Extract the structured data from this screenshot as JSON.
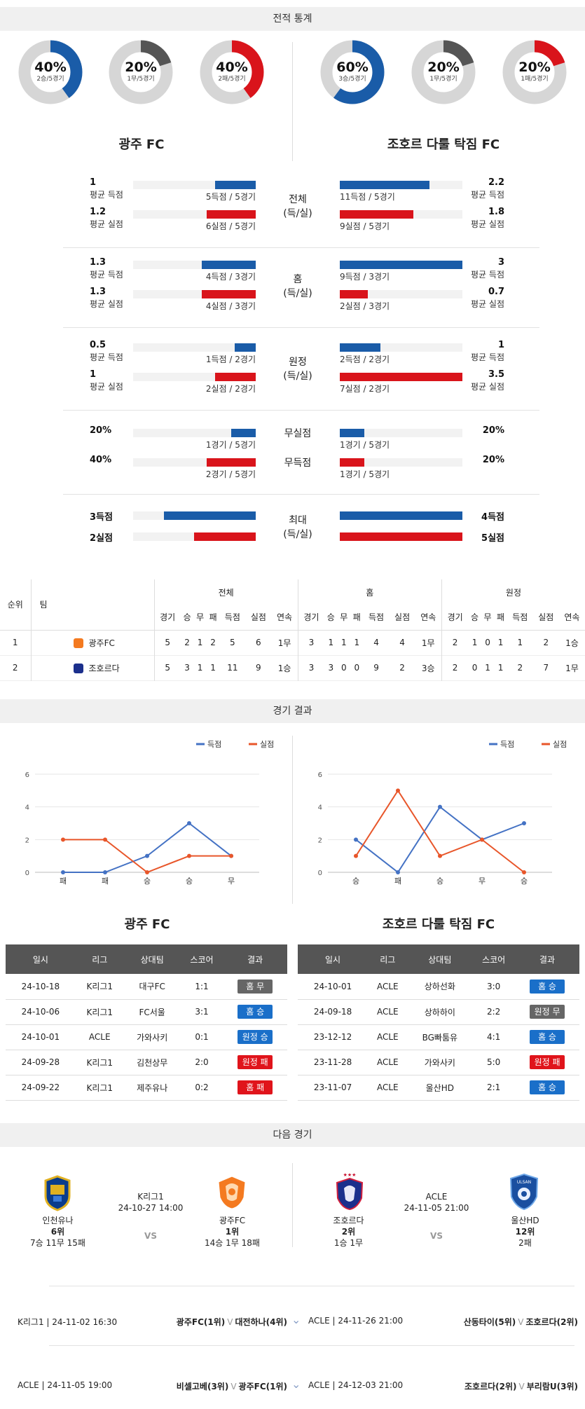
{
  "stats_title": "전적 통계",
  "donuts": [
    {
      "pct": "40%",
      "sub": "2승/5경기",
      "value": 0.4,
      "color": "#1a5ca8",
      "cx": 72
    },
    {
      "pct": "20%",
      "sub": "1무/5경기",
      "value": 0.2,
      "color": "#555555",
      "cx": 201
    },
    {
      "pct": "40%",
      "sub": "2패/5경기",
      "value": 0.4,
      "color": "#d9141b",
      "cx": 331
    },
    {
      "pct": "60%",
      "sub": "3승/5경기",
      "value": 0.6,
      "color": "#1a5ca8",
      "cx": 503
    },
    {
      "pct": "20%",
      "sub": "1무/5경기",
      "value": 0.2,
      "color": "#555555",
      "cx": 633
    },
    {
      "pct": "20%",
      "sub": "1패/5경기",
      "value": 0.2,
      "color": "#d9141b",
      "cx": 763
    }
  ],
  "team_home": "광주 FC",
  "team_away": "조호르 다룰 탁짐 FC",
  "stat_blocks": [
    {
      "cat1": "전체",
      "cat2": "(득/실)",
      "rows": [
        {
          "hv": "1",
          "hl": "평균 득점",
          "hn": "5득점 / 5경기",
          "hf": 0.33,
          "hc": "blue",
          "av": "2.2",
          "al": "평균 득점",
          "an": "11득점 / 5경기",
          "af": 0.73,
          "ac": "blue"
        },
        {
          "hv": "1.2",
          "hl": "평균 실점",
          "hn": "6실점 / 5경기",
          "hf": 0.4,
          "hc": "red",
          "av": "1.8",
          "al": "평균 실점",
          "an": "9실점 / 5경기",
          "af": 0.6,
          "ac": "red"
        }
      ]
    },
    {
      "cat1": "홈",
      "cat2": "(득/실)",
      "rows": [
        {
          "hv": "1.3",
          "hl": "평균 득점",
          "hn": "4득점 / 3경기",
          "hf": 0.44,
          "hc": "blue",
          "av": "3",
          "al": "평균 득점",
          "an": "9득점 / 3경기",
          "af": 1.0,
          "ac": "blue"
        },
        {
          "hv": "1.3",
          "hl": "평균 실점",
          "hn": "4실점 / 3경기",
          "hf": 0.44,
          "hc": "red",
          "av": "0.7",
          "al": "평균 실점",
          "an": "2실점 / 3경기",
          "af": 0.23,
          "ac": "red"
        }
      ]
    },
    {
      "cat1": "원정",
      "cat2": "(득/실)",
      "rows": [
        {
          "hv": "0.5",
          "hl": "평균 득점",
          "hn": "1득점 / 2경기",
          "hf": 0.17,
          "hc": "blue",
          "av": "1",
          "al": "평균 득점",
          "an": "2득점 / 2경기",
          "af": 0.33,
          "ac": "blue"
        },
        {
          "hv": "1",
          "hl": "평균 실점",
          "hn": "2실점 / 2경기",
          "hf": 0.33,
          "hc": "red",
          "av": "3.5",
          "al": "평균 실점",
          "an": "7실점 / 2경기",
          "af": 1.0,
          "ac": "red"
        }
      ]
    }
  ],
  "clean_block": [
    {
      "cat": "무실점",
      "hv": "20%",
      "hn": "1경기 / 5경기",
      "hf": 0.2,
      "hc": "blue",
      "av": "20%",
      "an": "1경기 / 5경기",
      "af": 0.2,
      "ac": "blue"
    },
    {
      "cat": "무득점",
      "hv": "40%",
      "hn": "2경기 / 5경기",
      "hf": 0.4,
      "hc": "red",
      "av": "20%",
      "an": "1경기 / 5경기",
      "af": 0.2,
      "ac": "red"
    }
  ],
  "max_block": {
    "cat1": "최대",
    "cat2": "(득/실)",
    "rows": [
      {
        "hv": "3득점",
        "hf": 0.75,
        "hc": "blue",
        "av": "4득점",
        "af": 1.0,
        "ac": "blue"
      },
      {
        "hv": "2실점",
        "hf": 0.5,
        "hc": "red",
        "av": "5실점",
        "af": 1.0,
        "ac": "red"
      }
    ]
  },
  "standings": {
    "groups": [
      "전체",
      "홈",
      "원정"
    ],
    "cols_rank": "순위",
    "cols_team": "팀",
    "sub_cols": [
      "경기",
      "승",
      "무",
      "패",
      "득점",
      "실점",
      "연속"
    ],
    "rows": [
      {
        "rank": "1",
        "team": "광주FC",
        "logo": "gwangju-logo-icon",
        "all": [
          "5",
          "2",
          "1",
          "2",
          "5",
          "6",
          "1무"
        ],
        "home": [
          "3",
          "1",
          "1",
          "1",
          "4",
          "4",
          "1무"
        ],
        "away": [
          "2",
          "1",
          "0",
          "1",
          "1",
          "2",
          "1승"
        ]
      },
      {
        "rank": "2",
        "team": "조호르다",
        "logo": "johor-logo-icon",
        "all": [
          "5",
          "3",
          "1",
          "1",
          "11",
          "9",
          "1승"
        ],
        "home": [
          "3",
          "3",
          "0",
          "0",
          "9",
          "2",
          "3승"
        ],
        "away": [
          "2",
          "0",
          "1",
          "1",
          "2",
          "7",
          "1무"
        ]
      }
    ]
  },
  "results_title": "경기 결과",
  "chart_data": [
    {
      "type": "line",
      "categories": [
        "패",
        "패",
        "승",
        "승",
        "무"
      ],
      "ylim": [
        0,
        6
      ],
      "yticks": [
        0,
        2,
        4,
        6
      ],
      "series": [
        {
          "name": "득점",
          "color": "#4472c4",
          "values": [
            0,
            0,
            1,
            3,
            1
          ]
        },
        {
          "name": "실점",
          "color": "#e8562a",
          "values": [
            2,
            2,
            0,
            1,
            1
          ]
        }
      ]
    },
    {
      "type": "line",
      "categories": [
        "승",
        "패",
        "승",
        "무",
        "승"
      ],
      "ylim": [
        0,
        6
      ],
      "yticks": [
        0,
        2,
        4,
        6
      ],
      "series": [
        {
          "name": "득점",
          "color": "#4472c4",
          "values": [
            2,
            0,
            4,
            2,
            3
          ]
        },
        {
          "name": "실점",
          "color": "#e8562a",
          "values": [
            1,
            5,
            1,
            2,
            0
          ]
        }
      ]
    }
  ],
  "result_headers": [
    "일시",
    "리그",
    "상대팀",
    "스코어",
    "결과"
  ],
  "results_home": [
    {
      "date": "24-10-18",
      "league": "K리그1",
      "opp": "대구FC",
      "score": "1:1",
      "res": "홈 무",
      "type": "draw"
    },
    {
      "date": "24-10-06",
      "league": "K리그1",
      "opp": "FC서울",
      "score": "3:1",
      "res": "홈 승",
      "type": "win"
    },
    {
      "date": "24-10-01",
      "league": "ACLE",
      "opp": "가와사키",
      "score": "0:1",
      "res": "원정 승",
      "type": "win"
    },
    {
      "date": "24-09-28",
      "league": "K리그1",
      "opp": "김천상무",
      "score": "2:0",
      "res": "원정 패",
      "type": "lose"
    },
    {
      "date": "24-09-22",
      "league": "K리그1",
      "opp": "제주유나",
      "score": "0:2",
      "res": "홈 패",
      "type": "lose"
    }
  ],
  "results_away": [
    {
      "date": "24-10-01",
      "league": "ACLE",
      "opp": "상하선화",
      "score": "3:0",
      "res": "홈 승",
      "type": "win"
    },
    {
      "date": "24-09-18",
      "league": "ACLE",
      "opp": "상하하이",
      "score": "2:2",
      "res": "원정 무",
      "type": "draw"
    },
    {
      "date": "23-12-12",
      "league": "ACLE",
      "opp": "BG빠툼유",
      "score": "4:1",
      "res": "홈 승",
      "type": "win"
    },
    {
      "date": "23-11-28",
      "league": "ACLE",
      "opp": "가와사키",
      "score": "5:0",
      "res": "원정 패",
      "type": "lose"
    },
    {
      "date": "23-11-07",
      "league": "ACLE",
      "opp": "울산HD",
      "score": "2:1",
      "res": "홈 승",
      "type": "win"
    }
  ],
  "next_title": "다음 경기",
  "next_home": {
    "league": "K리그1",
    "time": "24-10-27 14:00",
    "vs": "VS",
    "left": {
      "name": "인천유나",
      "rank": "6위",
      "record": "7승 11무 15패"
    },
    "right": {
      "name": "광주FC",
      "rank": "1위",
      "record": "14승 1무 18패"
    }
  },
  "next_away": {
    "league": "ACLE",
    "time": "24-11-05 21:00",
    "vs": "VS",
    "left": {
      "name": "조호르다",
      "rank": "2위",
      "record": "1승 1무"
    },
    "right": {
      "name": "울산HD",
      "rank": "12위",
      "record": "2패"
    }
  },
  "upcoming": [
    {
      "info": "K리그1 | 24-11-02 16:30",
      "t1": "광주FC(1위)",
      "v": "V",
      "t2": "대전하나(4위)"
    },
    {
      "info": "ACLE | 24-11-26 21:00",
      "t1": "산동타이(5위)",
      "v": "V",
      "t2": "조호르다(2위)"
    },
    {
      "info": "ACLE | 24-11-05 19:00",
      "t1": "비셀고베(3위)",
      "v": "V",
      "t2": "광주FC(1위)"
    },
    {
      "info": "ACLE | 24-12-03 21:00",
      "t1": "조호르다(2위)",
      "v": "V",
      "t2": "부리람U(3위)"
    }
  ]
}
